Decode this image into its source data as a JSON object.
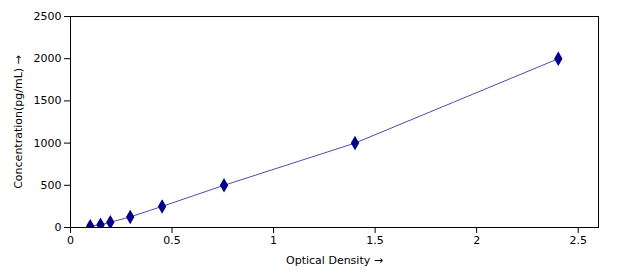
{
  "chart_data": {
    "type": "line",
    "xlabel": "Optical Density",
    "ylabel": "Concentration(pg/mL)",
    "x": [
      0.097,
      0.148,
      0.196,
      0.294,
      0.451,
      0.756,
      1.401,
      2.402
    ],
    "values": [
      15.6,
      31.25,
      62.5,
      125,
      250,
      500,
      1000,
      2000
    ],
    "color": "#00008B",
    "marker": "diamond",
    "line_style": "solid",
    "xlim": [
      0.0,
      2.6
    ],
    "ylim": [
      0,
      2500
    ],
    "xticks": [
      0,
      0.5,
      1.0,
      1.5,
      2.0,
      2.5
    ],
    "yticks": [
      0,
      500,
      1000,
      1500,
      2000,
      2500
    ],
    "grid": false
  }
}
